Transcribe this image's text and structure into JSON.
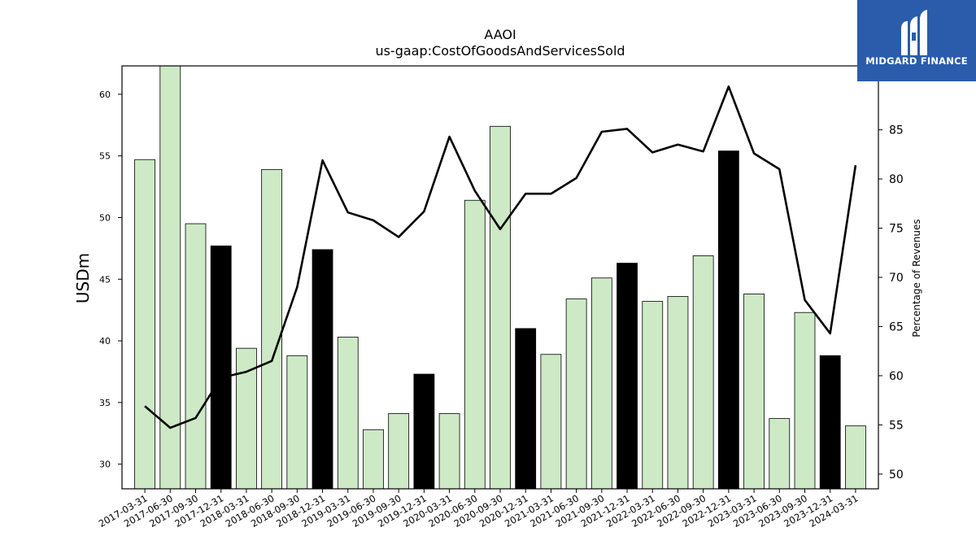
{
  "logo": {
    "text": "MIDGARD FINANCE",
    "bg_color": "#2a5cab"
  },
  "chart_data": {
    "type": "bar",
    "title": "AAOI",
    "subtitle": "us-gaap:CostOfGoodsAndServicesSold",
    "ylabel": "USDm",
    "y2label": "Percentage of Revenues",
    "ylim": [
      28,
      62.3
    ],
    "y2lim": [
      48.5,
      91.5
    ],
    "yticks": [
      30,
      35,
      40,
      45,
      50,
      55,
      60
    ],
    "y2ticks": [
      50,
      55,
      60,
      65,
      70,
      75,
      80,
      85
    ],
    "categories": [
      "2017-03-31",
      "2017-06-30",
      "2017-09-30",
      "2017-12-31",
      "2018-03-31",
      "2018-06-30",
      "2018-09-30",
      "2018-12-31",
      "2019-03-31",
      "2019-06-30",
      "2019-09-30",
      "2019-12-31",
      "2020-03-31",
      "2020-06-30",
      "2020-09-30",
      "2020-12-31",
      "2021-03-31",
      "2021-06-30",
      "2021-09-30",
      "2021-12-31",
      "2022-03-31",
      "2022-06-30",
      "2022-09-30",
      "2022-12-31",
      "2023-03-31",
      "2023-06-30",
      "2023-09-30",
      "2023-12-31",
      "2024-03-31"
    ],
    "values": [
      54.7,
      62.6,
      49.5,
      47.7,
      39.4,
      53.9,
      38.8,
      47.4,
      40.3,
      32.8,
      34.1,
      37.3,
      34.1,
      51.4,
      57.4,
      41.0,
      38.9,
      43.4,
      45.1,
      46.3,
      43.2,
      43.6,
      46.9,
      55.4,
      43.8,
      33.7,
      42.3,
      38.8,
      33.1
    ],
    "highlight_quarter": "12-31",
    "bar_color": "#cde9c6",
    "highlight_color": "#000000",
    "line_series": {
      "axis": "right",
      "color": "#000000",
      "values": [
        56.9,
        54.7,
        55.7,
        59.8,
        60.4,
        61.5,
        69.0,
        81.9,
        76.6,
        75.8,
        74.1,
        76.7,
        84.3,
        78.8,
        74.9,
        78.5,
        78.5,
        80.1,
        84.8,
        85.1,
        82.7,
        83.5,
        82.8,
        89.4,
        82.6,
        81.0,
        67.7,
        64.3,
        81.4
      ]
    }
  }
}
